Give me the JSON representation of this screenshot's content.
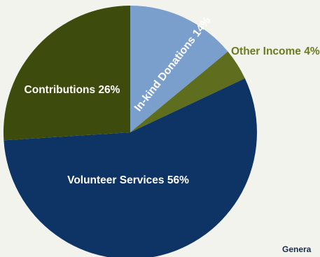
{
  "chart_data": {
    "type": "pie",
    "slices": [
      {
        "label": "In-kind Donations 14%",
        "value": 14,
        "color": "#7a9fcd"
      },
      {
        "label": "Other Income 4%",
        "value": 4,
        "color": "#5e6e1e"
      },
      {
        "label": "Volunteer Services 56%",
        "value": 56,
        "color": "#0e3465"
      },
      {
        "label": "Contributions 26%",
        "value": 26,
        "color": "#3d4b0c"
      }
    ],
    "extra_text": "Genera"
  }
}
